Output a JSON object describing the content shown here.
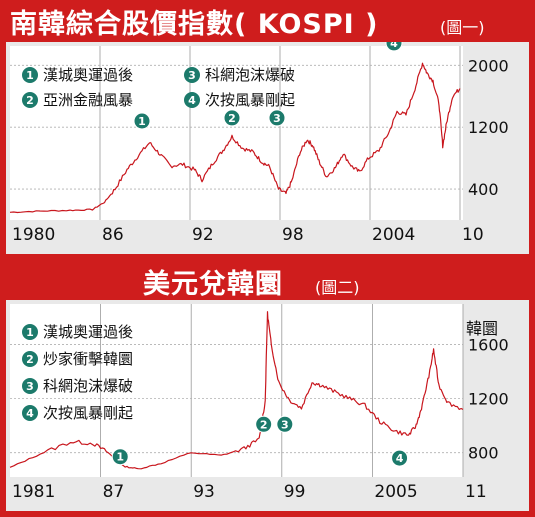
{
  "chart_data": [
    {
      "type": "line",
      "title": "南韓綜合股價指數( KOSPI )",
      "subtitle": "(圖一)",
      "x_tick_labels": [
        "1980",
        "86",
        "92",
        "98",
        "2004",
        "10"
      ],
      "x_ticks": [
        1980,
        1986,
        1992,
        1998,
        2004,
        2010
      ],
      "y_tick_labels": [
        "2000",
        "1200",
        "400"
      ],
      "y_ticks": [
        2000,
        1200,
        400
      ],
      "xlim": [
        1980,
        2010.2
      ],
      "ylim": [
        0,
        2250
      ],
      "ylabel": "",
      "grid": true,
      "legend": [
        {
          "num": "1",
          "label": "漢城奧運過後"
        },
        {
          "num": "2",
          "label": "亞洲金融風暴"
        },
        {
          "num": "3",
          "label": "科網泡沫爆破"
        },
        {
          "num": "4",
          "label": "次按風暴剛起"
        }
      ],
      "markers": [
        {
          "num": "1",
          "x": 1988.8,
          "y": 1280
        },
        {
          "num": "2",
          "x": 1994.8,
          "y": 1320
        },
        {
          "num": "3",
          "x": 1997.8,
          "y": 1320
        },
        {
          "num": "4",
          "x": 2005.6,
          "y": 2290
        }
      ],
      "series": [
        {
          "color": "#c8161d",
          "x": [
            1980,
            1982,
            1984,
            1985.5,
            1986.3,
            1987,
            1987.8,
            1988.5,
            1989.3,
            1990,
            1990.7,
            1991.5,
            1992.3,
            1992.8,
            1993.5,
            1994.2,
            1994.8,
            1995.5,
            1996.2,
            1996.8,
            1997.3,
            1997.9,
            1998.4,
            1998.8,
            1999.3,
            1999.8,
            2000.2,
            2000.6,
            2001.1,
            2001.7,
            2002.2,
            2002.8,
            2003.3,
            2003.9,
            2004.6,
            2005.3,
            2005.8,
            2006.4,
            2007.0,
            2007.5,
            2007.8,
            2008.2,
            2008.6,
            2008.85,
            2009.1,
            2009.5,
            2010.0
          ],
          "y": [
            100,
            115,
            125,
            135,
            230,
            400,
            650,
            820,
            1000,
            850,
            700,
            720,
            650,
            520,
            730,
            900,
            1080,
            930,
            880,
            750,
            690,
            400,
            340,
            510,
            860,
            1040,
            960,
            760,
            560,
            680,
            860,
            690,
            620,
            800,
            900,
            1150,
            1400,
            1360,
            1700,
            2030,
            1900,
            1800,
            1500,
            960,
            1250,
            1600,
            1700
          ]
        }
      ]
    },
    {
      "type": "line",
      "title": "美元兌韓圜",
      "subtitle": "(圖二)",
      "ylabel": "韓圜",
      "x_tick_labels": [
        "1981",
        "87",
        "93",
        "99",
        "2005",
        "11"
      ],
      "x_ticks": [
        1981,
        1987,
        1993,
        1999,
        2005,
        2011
      ],
      "y_tick_labels": [
        "1600",
        "1200",
        "800"
      ],
      "y_ticks": [
        1600,
        1200,
        800
      ],
      "xlim": [
        1981,
        2011
      ],
      "ylim": [
        620,
        1900
      ],
      "grid": true,
      "legend": [
        {
          "num": "1",
          "label": "漢城奧運過後"
        },
        {
          "num": "2",
          "label": "炒家衝擊韓圜"
        },
        {
          "num": "3",
          "label": "科網泡沫爆破"
        },
        {
          "num": "4",
          "label": "次按風暴剛起"
        }
      ],
      "markers": [
        {
          "num": "1",
          "x": 1988.3,
          "y": 770
        },
        {
          "num": "2",
          "x": 1997.8,
          "y": 1010
        },
        {
          "num": "3",
          "x": 1999.2,
          "y": 1010
        },
        {
          "num": "4",
          "x": 2006.8,
          "y": 760
        }
      ],
      "series": [
        {
          "color": "#c8161d",
          "x": [
            1981,
            1983,
            1985,
            1986.5,
            1987.5,
            1988.5,
            1989.5,
            1991,
            1993,
            1995,
            1996.5,
            1997.5,
            1997.9,
            1998.05,
            1998.3,
            1998.8,
            1999.5,
            2000.3,
            2001,
            2001.6,
            2002.5,
            2003.5,
            2004.5,
            2005.5,
            2006.5,
            2007.4,
            2007.9,
            2008.3,
            2008.8,
            2009.05,
            2009.4,
            2010,
            2011
          ],
          "y": [
            690,
            790,
            880,
            870,
            800,
            700,
            680,
            720,
            800,
            780,
            830,
            900,
            1180,
            1830,
            1600,
            1320,
            1190,
            1130,
            1320,
            1300,
            1250,
            1200,
            1150,
            1030,
            960,
            930,
            1000,
            1150,
            1400,
            1560,
            1300,
            1170,
            1120
          ]
        }
      ]
    }
  ]
}
